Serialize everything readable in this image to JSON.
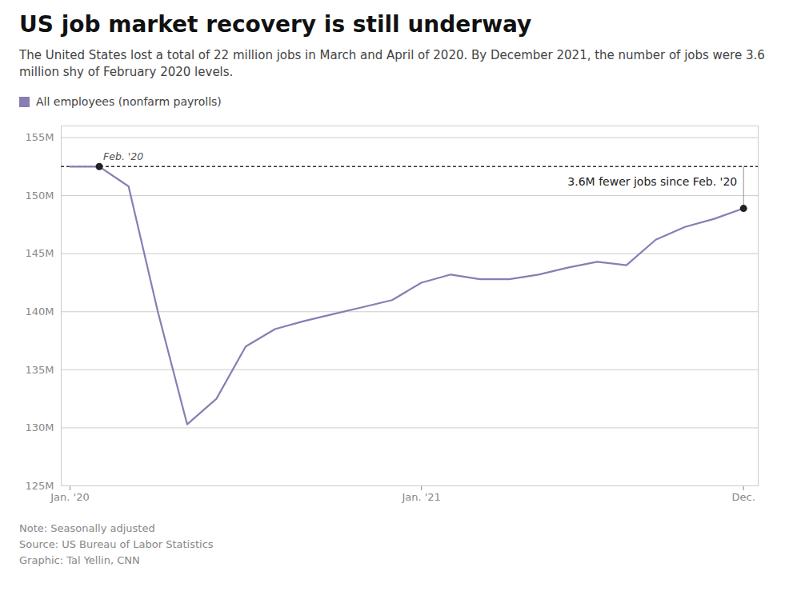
{
  "chart_data": {
    "type": "line",
    "title": "US job market recovery is still underway",
    "subtitle": "The United States lost a total of 22 million jobs in March and April of 2020. By December 2021, the number of jobs were 3.6\nmillion shy of February 2020 levels.",
    "note": "Note: Seasonally adjusted",
    "source": "Source: US Bureau of Labor Statistics",
    "graphic": "Graphic: Tal Yellin, CNN",
    "x": [
      0,
      1,
      2,
      3,
      4,
      5,
      6,
      7,
      8,
      9,
      10,
      11,
      12,
      13,
      14,
      15,
      16,
      17,
      18,
      19,
      20,
      21,
      22,
      23
    ],
    "series": [
      {
        "name": "All employees (nonfarm payrolls)",
        "color": "#8B7CB3",
        "values": [
          152.5,
          152.5,
          150.8,
          140.0,
          130.3,
          132.5,
          137.0,
          138.5,
          139.2,
          139.8,
          140.4,
          141.0,
          142.5,
          143.2,
          142.8,
          142.8,
          143.2,
          143.8,
          144.3,
          144.0,
          146.2,
          147.3,
          148.0,
          148.9
        ]
      }
    ],
    "xlim": [
      -0.3,
      23.5
    ],
    "xticks": [
      {
        "value": 0,
        "label": "Jan. '20"
      },
      {
        "value": 12,
        "label": "Jan. '21"
      },
      {
        "value": 23,
        "label": "Dec."
      }
    ],
    "ylim": [
      125,
      156
    ],
    "yticks": [
      {
        "value": 125,
        "label": "125M"
      },
      {
        "value": 130,
        "label": "130M"
      },
      {
        "value": 135,
        "label": "135M"
      },
      {
        "value": 140,
        "label": "140M"
      },
      {
        "value": 145,
        "label": "145M"
      },
      {
        "value": 150,
        "label": "150M"
      },
      {
        "value": 155,
        "label": "155M"
      }
    ],
    "grid": true,
    "legend": "top-left",
    "reference_line": {
      "y": 152.5,
      "line_style": "dashed",
      "color": "#333333"
    },
    "highlight_points": {
      "color": "#222222",
      "x": [
        1,
        23
      ],
      "y": [
        152.5,
        148.9
      ]
    },
    "annotations": [
      {
        "text": "Feb. '20",
        "x": 1,
        "y": 152.5
      },
      {
        "text": "3.6M fewer jobs since Feb. '20",
        "x": 23,
        "y": 152.5
      }
    ]
  }
}
